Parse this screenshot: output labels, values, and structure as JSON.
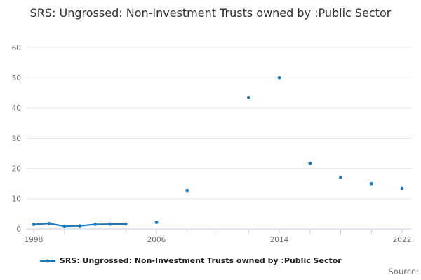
{
  "title": {
    "text": "SRS: Ungrossed: Non-Investment Trusts owned by :Public Sector"
  },
  "legend": {
    "marker": "line-dot-icon",
    "label": "SRS: Ungrossed: Non-Investment Trusts owned by :Public Sector"
  },
  "footer": {
    "source_label": "Source:"
  },
  "colors": {
    "series": "#1b79bb",
    "grid": "#e4e4e4",
    "axis_line": "#c7cdd9",
    "tick": "#c7cdd9",
    "axis_text": "#6e6e6e",
    "title_text": "#2d2d2d"
  },
  "chart_data": {
    "type": "line",
    "title": "SRS: Ungrossed: Non-Investment Trusts owned by :Public Sector",
    "xlabel": "",
    "ylabel": "",
    "x_range": [
      1998,
      2022
    ],
    "ylim": [
      0,
      60
    ],
    "y_ticks": [
      0,
      10,
      20,
      30,
      40,
      50,
      60
    ],
    "x_ticks": [
      1998,
      2000,
      2002,
      2004,
      2006,
      2008,
      2010,
      2012,
      2014,
      2016,
      2018,
      2020,
      2022
    ],
    "x_tick_labels": [
      "1998",
      "2006",
      "2014",
      "2022"
    ],
    "grid": "horizontal",
    "legend_position": "bottom",
    "series": [
      {
        "name": "SRS: Ungrossed: Non-Investment Trusts owned by :Public Sector",
        "points": [
          [
            1998,
            1.5
          ],
          [
            1999,
            1.8
          ],
          [
            2000,
            0.9
          ],
          [
            2001,
            1.0
          ],
          [
            2002,
            1.5
          ],
          [
            2003,
            1.6
          ],
          [
            2004,
            1.6
          ],
          [
            2006,
            2.2
          ],
          [
            2008,
            12.7
          ],
          [
            2012,
            43.5
          ],
          [
            2014,
            50.0
          ],
          [
            2016,
            21.7
          ],
          [
            2018,
            17.0
          ],
          [
            2020,
            15.0
          ],
          [
            2022,
            13.4
          ]
        ],
        "note_gaps": "points more than 1 year apart are not connected"
      }
    ]
  }
}
